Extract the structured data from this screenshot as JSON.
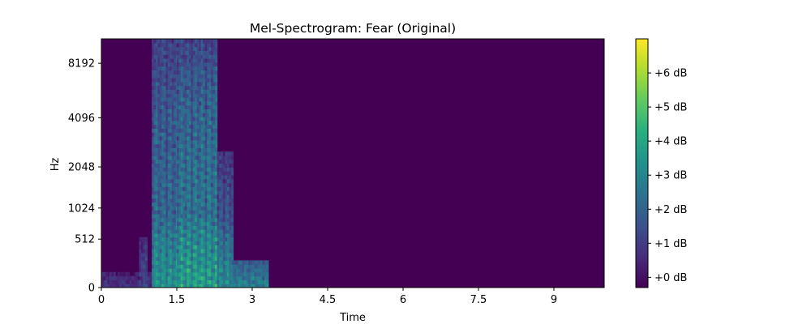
{
  "chart_data": {
    "type": "heatmap",
    "title": "Mel-Spectrogram: Fear (Original)",
    "xlabel": "Time",
    "ylabel": "Hz",
    "xlim": [
      0,
      10
    ],
    "x_ticks": [
      0,
      1.5,
      3,
      4.5,
      6,
      7.5,
      9
    ],
    "x_tick_labels": [
      "0",
      "1.5",
      "3",
      "4.5",
      "6",
      "7.5",
      "9"
    ],
    "y_scale": "mel",
    "y_ticks": [
      0,
      512,
      1024,
      2048,
      4096,
      8192
    ],
    "y_tick_labels": [
      "0",
      "512",
      "1024",
      "2048",
      "4096",
      "8192"
    ],
    "colormap": "viridis",
    "colorbar": {
      "ticks": [
        0,
        1,
        2,
        3,
        4,
        5,
        6
      ],
      "tick_labels": [
        "+0 dB",
        "+1 dB",
        "+2 dB",
        "+3 dB",
        "+4 dB",
        "+5 dB",
        "+6 dB"
      ],
      "range": [
        -0.3,
        7.0
      ]
    },
    "background_value": -0.3,
    "energy_regions": [
      {
        "t_start": 0.0,
        "t_end": 1.0,
        "f_top": 100,
        "level": 1.0
      },
      {
        "t_start": 0.75,
        "t_end": 0.9,
        "f_top": 500,
        "level": 1.6
      },
      {
        "t_start": 1.0,
        "t_end": 1.5,
        "f_top": 11000,
        "level": 3.0
      },
      {
        "t_start": 1.5,
        "t_end": 2.3,
        "f_top": 11000,
        "level": 3.5
      },
      {
        "t_start": 2.3,
        "t_end": 2.6,
        "f_top": 2500,
        "level": 2.5
      },
      {
        "t_start": 2.6,
        "t_end": 3.3,
        "f_top": 250,
        "level": 2.2
      }
    ]
  }
}
